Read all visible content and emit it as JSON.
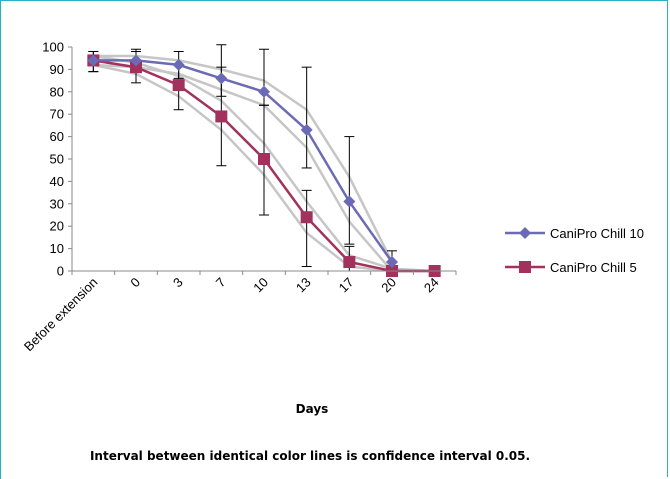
{
  "chart_data": {
    "type": "line",
    "categories": [
      "Before extension",
      "0",
      "3",
      "7",
      "10",
      "13",
      "17",
      "20",
      "24"
    ],
    "xlabel": "Days",
    "ylabel": "",
    "title": "",
    "ylim": [
      0,
      100
    ],
    "yticks": [
      0,
      10,
      20,
      30,
      40,
      50,
      60,
      70,
      80,
      90,
      100
    ],
    "grid": false,
    "legend_position": "right",
    "series": [
      {
        "name": "CaniPro Chill 10",
        "color": "#6b6bb5",
        "marker": "diamond",
        "values": [
          94,
          94,
          92,
          86,
          80,
          63,
          31,
          4,
          null
        ],
        "error_low": [
          89,
          90,
          86,
          78,
          74,
          46,
          12,
          0,
          null
        ],
        "error_high": [
          98,
          99,
          98,
          101,
          99,
          91,
          60,
          9,
          null
        ],
        "ci_upper": [
          96,
          96,
          94,
          90,
          85,
          72,
          42,
          4,
          null
        ],
        "ci_lower": [
          92,
          91,
          88,
          81,
          74,
          55,
          22,
          0,
          null
        ]
      },
      {
        "name": "CaniPro Chill 5",
        "color": "#a3315d",
        "marker": "square",
        "values": [
          94,
          91,
          83,
          69,
          50,
          24,
          4,
          0,
          0
        ],
        "error_low": [
          89,
          84,
          72,
          47,
          25,
          2,
          0,
          0,
          0
        ],
        "error_high": [
          98,
          98,
          92,
          91,
          74,
          36,
          11,
          0,
          0
        ],
        "ci_upper": [
          96,
          93,
          87,
          76,
          57,
          31,
          7,
          1,
          0
        ],
        "ci_lower": [
          92,
          88,
          78,
          63,
          43,
          17,
          2,
          0,
          0
        ]
      }
    ],
    "ci_line_color": "#c6c6c6"
  },
  "footnote": "Interval between identical color lines is confidence interval 0.05."
}
